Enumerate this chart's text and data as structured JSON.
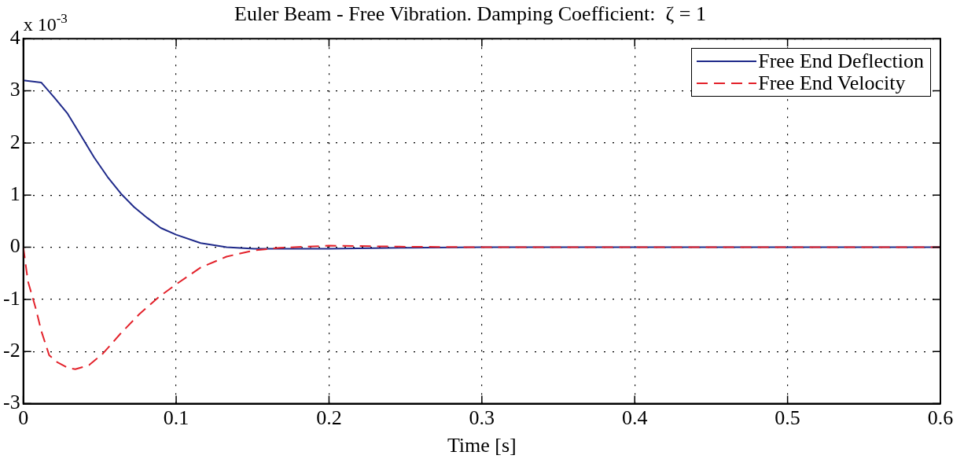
{
  "chart_data": {
    "type": "line",
    "title": "Euler Beam - Free Vibration. Damping Coefficient:  ζ = 1",
    "xlabel": "Time [s]",
    "annotations": [
      "x 10$^{-3}$"
    ],
    "xlim": [
      0,
      0.6
    ],
    "xticks": [
      0,
      0.1,
      0.2,
      0.3,
      0.4,
      0.5,
      0.6
    ],
    "ylim": [
      -3,
      4
    ],
    "yticks": [
      -3,
      -2,
      -1,
      0,
      1,
      2,
      3,
      4
    ],
    "grid": true,
    "legend": "top right",
    "marker": "none",
    "series": [
      {
        "name": "Free End Deflection",
        "color": "#1f2a8a",
        "line_style": "solid",
        "x": [
          0,
          0.0117,
          0.0203,
          0.029,
          0.0377,
          0.0464,
          0.0551,
          0.0638,
          0.0725,
          0.0812,
          0.0899,
          0.1,
          0.116,
          0.133,
          0.151,
          0.2,
          0.25,
          0.3,
          0.4,
          0.5,
          0.6
        ],
        "values": [
          3.2,
          3.16,
          2.87,
          2.56,
          2.14,
          1.72,
          1.35,
          1.03,
          0.77,
          0.56,
          0.37,
          0.24,
          0.08,
          0.0,
          -0.03,
          -0.03,
          -0.01,
          0,
          0,
          0,
          0
        ]
      },
      {
        "name": "Free End Velocity",
        "color": "#e3222b",
        "line_style": "dashed",
        "x": [
          0,
          0.003,
          0.0082,
          0.0117,
          0.0169,
          0.022,
          0.029,
          0.034,
          0.043,
          0.0517,
          0.0638,
          0.076,
          0.088,
          0.1,
          0.116,
          0.133,
          0.151,
          0.168,
          0.2,
          0.25,
          0.3,
          0.4,
          0.5,
          0.6
        ],
        "values": [
          0,
          -0.65,
          -1.18,
          -1.6,
          -2.07,
          -2.2,
          -2.31,
          -2.34,
          -2.26,
          -2.05,
          -1.65,
          -1.28,
          -0.97,
          -0.71,
          -0.39,
          -0.18,
          -0.06,
          -0.01,
          0.03,
          0.01,
          0,
          0,
          0,
          0
        ]
      }
    ]
  }
}
